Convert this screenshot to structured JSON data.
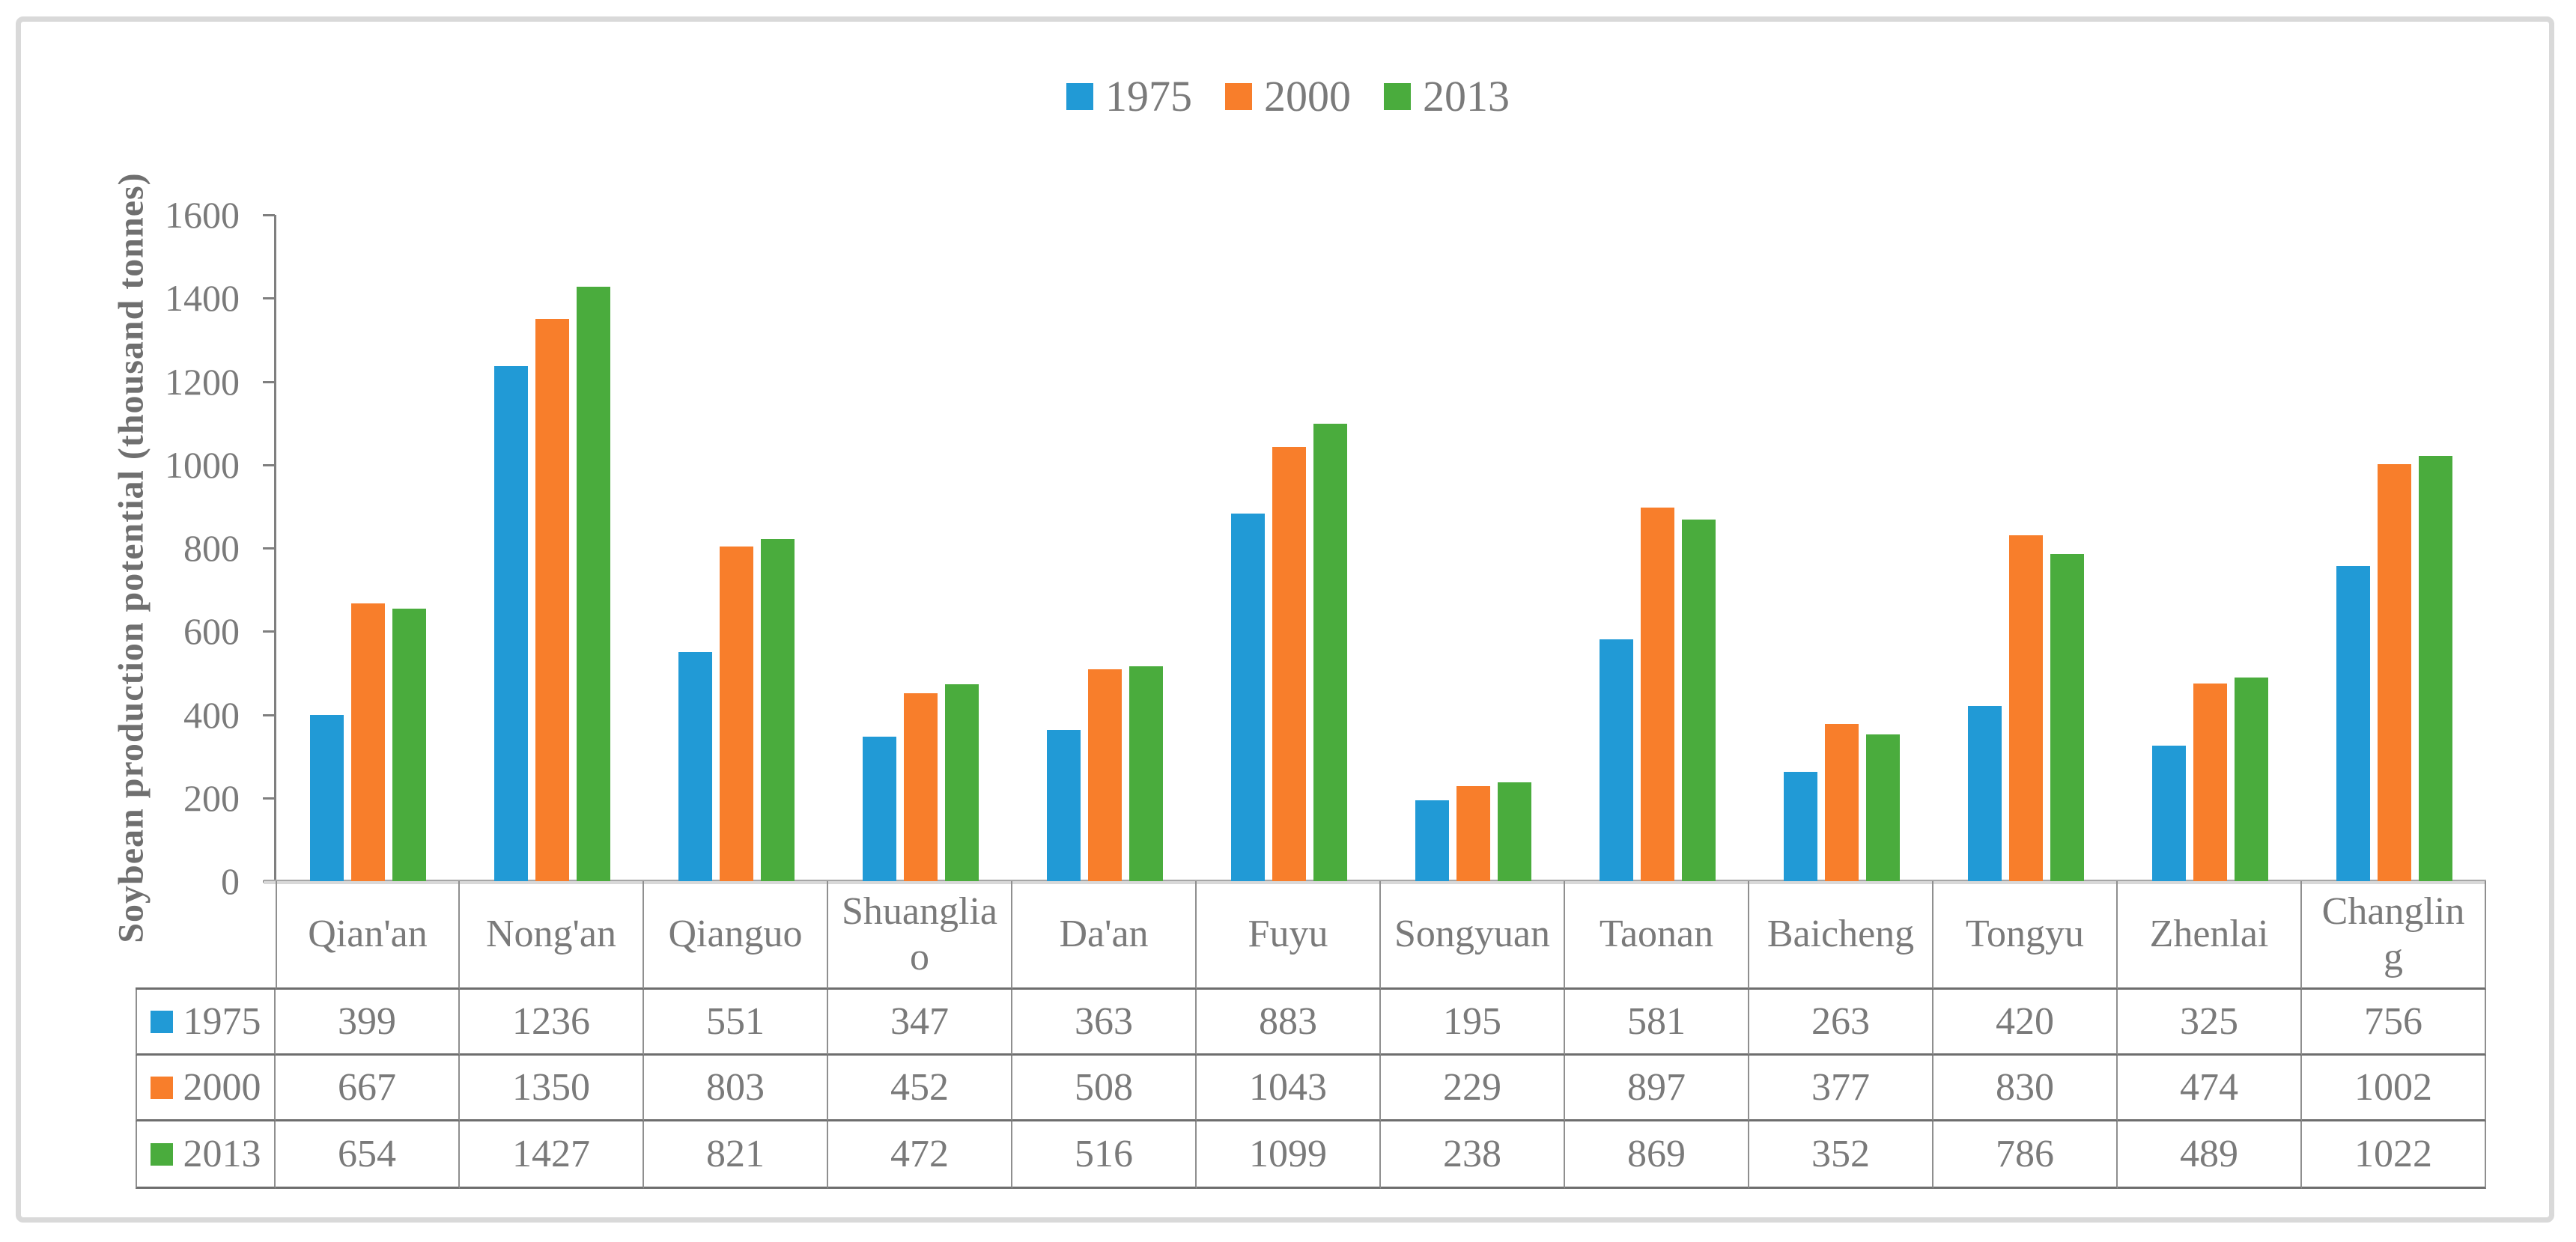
{
  "figure": {
    "background": "#FFFFFF",
    "border_color": "#D9D9D9"
  },
  "chart_data": {
    "type": "bar",
    "title": "",
    "xlabel": "",
    "ylabel": "Soybean production potential (thousand tonnes)",
    "categories": [
      "Qian'an",
      "Nong'an",
      "Qianguo",
      "Shuangliao",
      "Da'an",
      "Fuyu",
      "Songyuan",
      "Taonan",
      "Baicheng",
      "Tongyu",
      "Zhenlai",
      "Changling"
    ],
    "series": [
      {
        "name": "1975",
        "color": "#219AD6",
        "values": [
          399,
          1236,
          551,
          347,
          363,
          883,
          195,
          581,
          263,
          420,
          325,
          756
        ]
      },
      {
        "name": "2000",
        "color": "#F87E2B",
        "values": [
          667,
          1350,
          803,
          452,
          508,
          1043,
          229,
          897,
          377,
          830,
          474,
          1002
        ]
      },
      {
        "name": "2013",
        "color": "#4AAC3D",
        "values": [
          654,
          1427,
          821,
          472,
          516,
          1099,
          238,
          869,
          352,
          786,
          489,
          1022
        ]
      }
    ],
    "ylim": [
      0,
      1600
    ],
    "yticks": [
      0,
      200,
      400,
      600,
      800,
      1000,
      1200,
      1400,
      1600
    ],
    "legend_position": "top",
    "grid": false,
    "data_table_shown": true,
    "text_color": "#7A7A7A",
    "axis_color": "#7F7F7F"
  }
}
